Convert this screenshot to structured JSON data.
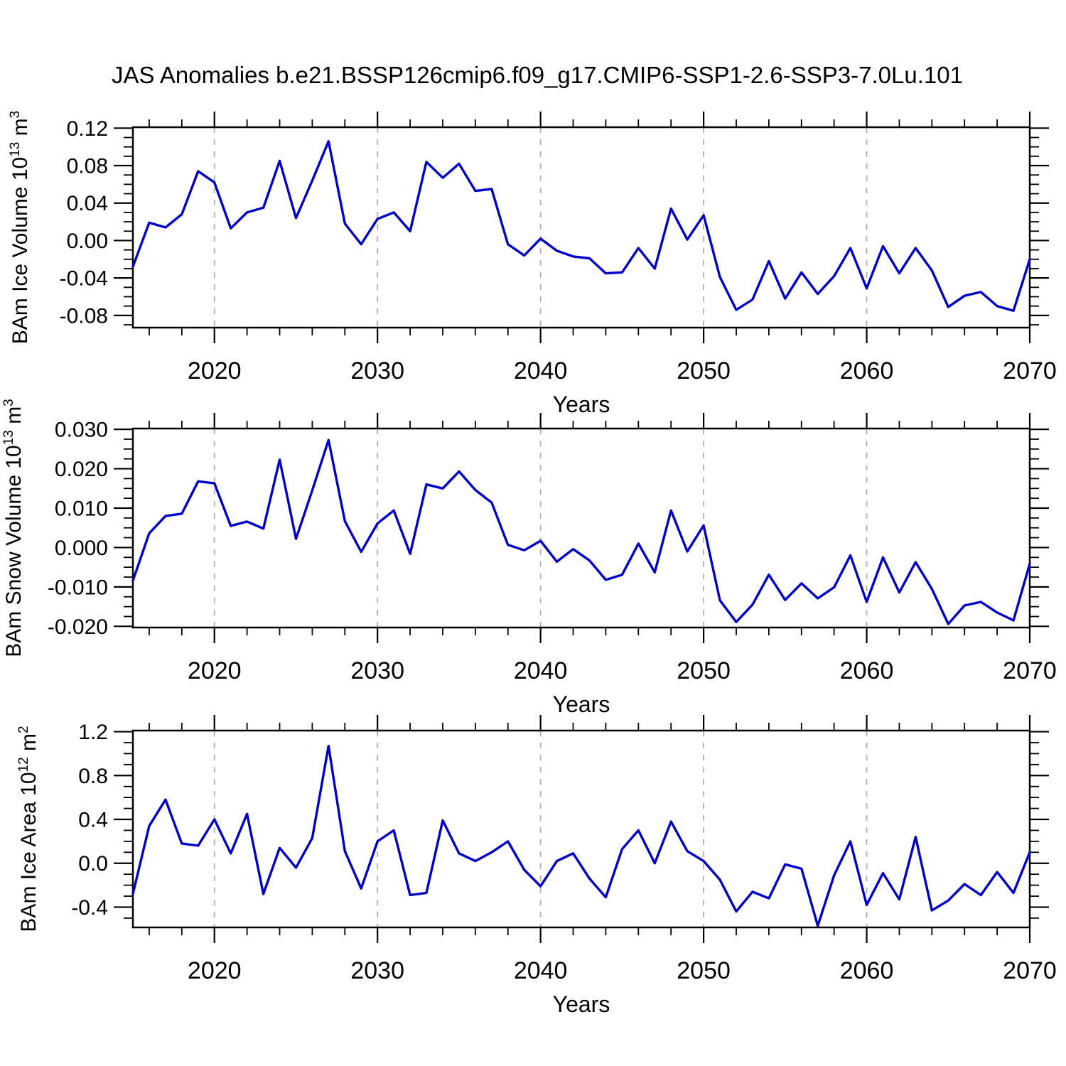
{
  "title": "JAS Anomalies b.e21.BSSP126cmip6.f09_g17.CMIP6-SSP1-2.6-SSP3-7.0Lu.101",
  "line_color": "#0000cd",
  "grid_color": "#b0b0b0",
  "frame_color": "#000000",
  "chart_data": [
    {
      "type": "line",
      "name": "bam-ice-volume",
      "xlabel": "Years",
      "ylabel_parts": [
        [
          "BAm Ice Volume 10",
          0
        ],
        [
          "13",
          1
        ],
        [
          " m",
          0
        ],
        [
          "3",
          1
        ]
      ],
      "x": {
        "start": 2015,
        "end": 2070,
        "step": 1
      },
      "xticks": [
        2020,
        2030,
        2040,
        2050,
        2060,
        2070
      ],
      "xtick_labels": [
        "2020",
        "2030",
        "2040",
        "2050",
        "2060",
        "2070"
      ],
      "xminor_step": 2,
      "grid_years": [
        2020,
        2030,
        2040,
        2050,
        2060
      ],
      "grid_style": "dashed",
      "ylim": [
        -0.093,
        0.121
      ],
      "yticks": [
        {
          "v": 0.12,
          "label": "0.12"
        },
        {
          "v": 0.08,
          "label": "0.08"
        },
        {
          "v": 0.04,
          "label": "0.04"
        },
        {
          "v": 0.0,
          "label": "0.00"
        },
        {
          "v": -0.04,
          "label": "-0.04"
        },
        {
          "v": -0.08,
          "label": "-0.08"
        }
      ],
      "yminor_step": 0.01,
      "values": [
        -0.028,
        0.019,
        0.014,
        0.028,
        0.074,
        0.062,
        0.013,
        0.03,
        0.035,
        0.085,
        0.024,
        0.064,
        0.106,
        0.018,
        -0.004,
        0.023,
        0.03,
        0.01,
        0.084,
        0.067,
        0.082,
        0.053,
        0.055,
        -0.004,
        -0.016,
        0.002,
        -0.011,
        -0.017,
        -0.019,
        -0.035,
        -0.034,
        -0.008,
        -0.03,
        0.034,
        0.001,
        0.027,
        -0.039,
        -0.074,
        -0.063,
        -0.022,
        -0.062,
        -0.034,
        -0.057,
        -0.038,
        -0.008,
        -0.051,
        -0.006,
        -0.035,
        -0.008,
        -0.032,
        -0.071,
        -0.059,
        -0.055,
        -0.07,
        -0.075,
        -0.02
      ]
    },
    {
      "type": "line",
      "name": "bam-snow-volume",
      "xlabel": "Years",
      "ylabel_parts": [
        [
          "BAm Snow Volume 10",
          0
        ],
        [
          "13",
          1
        ],
        [
          " m",
          0
        ],
        [
          "3",
          1
        ]
      ],
      "x": {
        "start": 2015,
        "end": 2070,
        "step": 1
      },
      "xticks": [
        2020,
        2030,
        2040,
        2050,
        2060,
        2070
      ],
      "xtick_labels": [
        "2020",
        "2030",
        "2040",
        "2050",
        "2060",
        "2070"
      ],
      "xminor_step": 2,
      "grid_years": [
        2020,
        2030,
        2040,
        2050,
        2060
      ],
      "grid_style": "dashed",
      "ylim": [
        -0.0203,
        0.0302
      ],
      "yticks": [
        {
          "v": 0.03,
          "label": "0.030"
        },
        {
          "v": 0.02,
          "label": "0.020"
        },
        {
          "v": 0.01,
          "label": "0.010"
        },
        {
          "v": 0.0,
          "label": "0.000"
        },
        {
          "v": -0.01,
          "label": "-0.010"
        },
        {
          "v": -0.02,
          "label": "-0.020"
        }
      ],
      "yminor_step": 0.0025,
      "values": [
        -0.0084,
        0.0036,
        0.008,
        0.0086,
        0.0168,
        0.0163,
        0.0055,
        0.0066,
        0.0048,
        0.0223,
        0.0022,
        0.0145,
        0.0273,
        0.0067,
        -0.0011,
        0.0061,
        0.0094,
        -0.0016,
        0.016,
        0.015,
        0.0193,
        0.0146,
        0.0114,
        0.0007,
        -0.0007,
        0.0017,
        -0.0036,
        -0.0004,
        -0.0033,
        -0.0082,
        -0.0069,
        0.001,
        -0.0063,
        0.0094,
        -0.001,
        0.0056,
        -0.0134,
        -0.0189,
        -0.0145,
        -0.0069,
        -0.0133,
        -0.0091,
        -0.0129,
        -0.0101,
        -0.002,
        -0.0138,
        -0.0025,
        -0.0114,
        -0.0037,
        -0.0105,
        -0.0194,
        -0.0147,
        -0.0138,
        -0.0165,
        -0.0185,
        -0.0041
      ]
    },
    {
      "type": "line",
      "name": "bam-ice-area",
      "xlabel": "Years",
      "ylabel_parts": [
        [
          "BAm Ice Area 10",
          0
        ],
        [
          "12",
          1
        ],
        [
          " m",
          0
        ],
        [
          "2",
          1
        ]
      ],
      "x": {
        "start": 2015,
        "end": 2070,
        "step": 1
      },
      "xticks": [
        2020,
        2030,
        2040,
        2050,
        2060,
        2070
      ],
      "xtick_labels": [
        "2020",
        "2030",
        "2040",
        "2050",
        "2060",
        "2070"
      ],
      "xminor_step": 2,
      "grid_years": [
        2020,
        2030,
        2040,
        2050,
        2060
      ],
      "grid_style": "dashed",
      "ylim": [
        -0.585,
        1.21
      ],
      "yticks": [
        {
          "v": 1.2,
          "label": "1.2"
        },
        {
          "v": 0.8,
          "label": "0.8"
        },
        {
          "v": 0.4,
          "label": "0.4"
        },
        {
          "v": 0.0,
          "label": "0.0"
        },
        {
          "v": -0.4,
          "label": "-0.4"
        }
      ],
      "yminor_step": 0.1,
      "values": [
        -0.28,
        0.34,
        0.58,
        0.18,
        0.16,
        0.4,
        0.09,
        0.45,
        -0.28,
        0.14,
        -0.04,
        0.23,
        1.07,
        0.11,
        -0.23,
        0.2,
        0.3,
        -0.29,
        -0.27,
        0.39,
        0.09,
        0.02,
        0.1,
        0.2,
        -0.06,
        -0.21,
        0.02,
        0.09,
        -0.14,
        -0.31,
        0.13,
        0.3,
        0.0,
        0.38,
        0.11,
        0.02,
        -0.15,
        -0.44,
        -0.26,
        -0.32,
        -0.01,
        -0.05,
        -0.57,
        -0.11,
        0.2,
        -0.38,
        -0.09,
        -0.33,
        0.24,
        -0.43,
        -0.34,
        -0.19,
        -0.29,
        -0.08,
        -0.27,
        0.1
      ]
    }
  ]
}
